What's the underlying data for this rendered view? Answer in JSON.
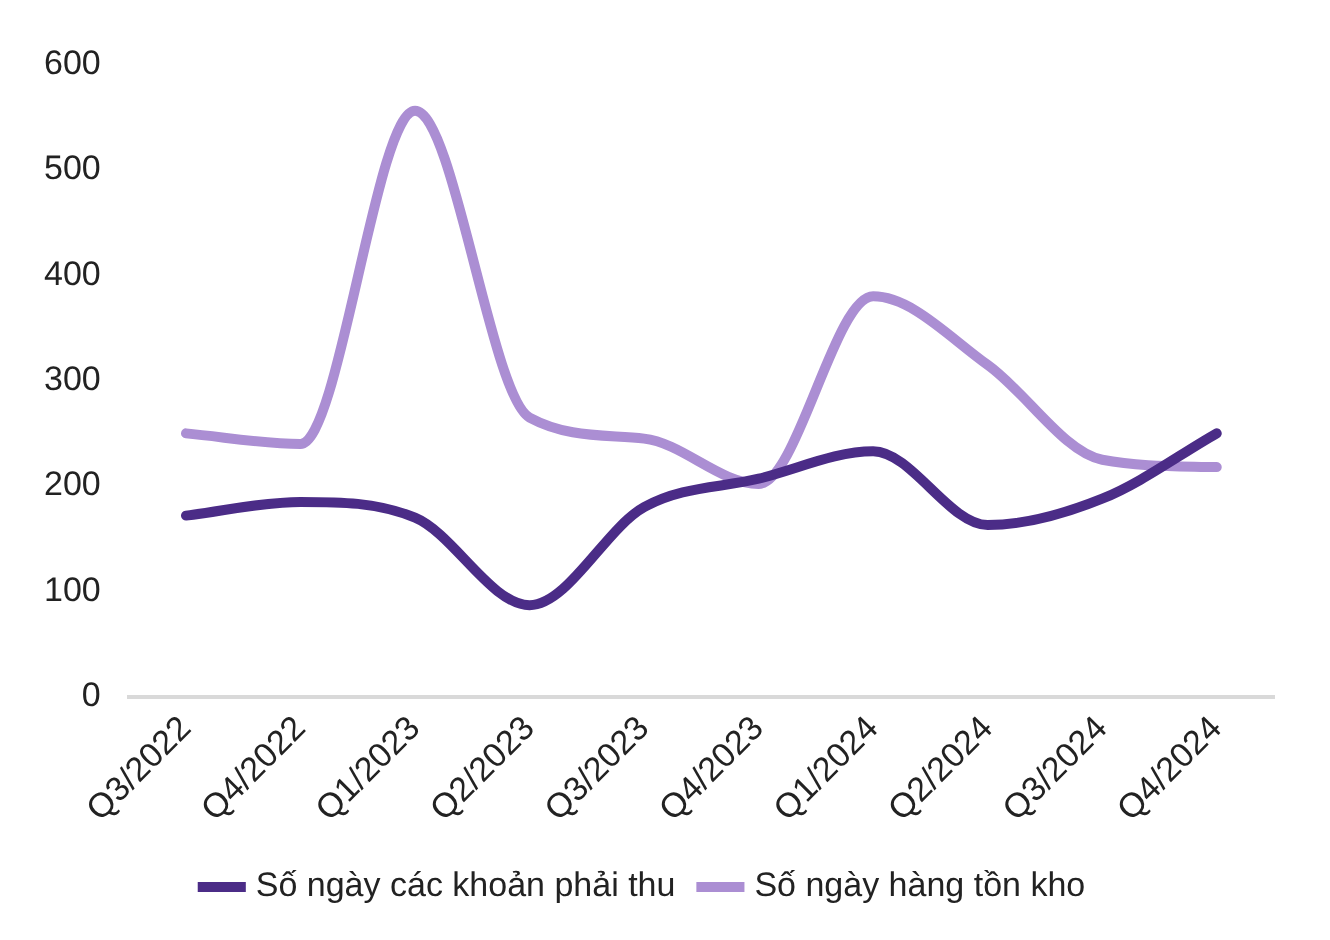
{
  "chart_data": {
    "type": "line",
    "categories": [
      "Q3/2022",
      "Q4/2022",
      "Q1/2023",
      "Q2/2023",
      "Q3/2023",
      "Q4/2023",
      "Q1/2024",
      "Q2/2024",
      "Q3/2024",
      "Q4/2024"
    ],
    "series": [
      {
        "name": "Số ngày các khoản phải thu",
        "color": "#4b2c87",
        "values": [
          172,
          185,
          170,
          87,
          180,
          207,
          233,
          163,
          188,
          250
        ]
      },
      {
        "name": "Số ngày hàng tồn kho",
        "color": "#ab8ed3",
        "values": [
          250,
          240,
          556,
          265,
          245,
          202,
          380,
          315,
          225,
          218
        ]
      }
    ],
    "ylim": [
      0,
      600
    ],
    "yticks": [
      0,
      100,
      200,
      300,
      400,
      500,
      600
    ],
    "grid": false,
    "legend": "bottom",
    "marker": "none",
    "line_style": "solid"
  }
}
